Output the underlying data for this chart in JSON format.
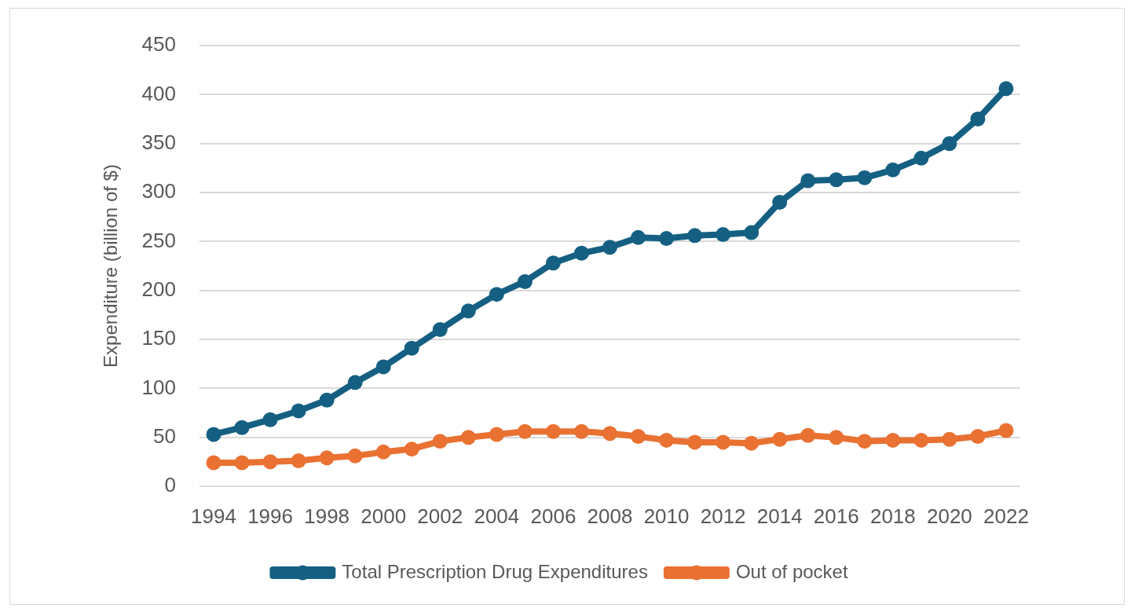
{
  "chart_data": {
    "type": "line",
    "ylabel": "Expenditure (billion of $)",
    "categories": [
      "1994",
      null,
      "1996",
      null,
      "1998",
      null,
      "2000",
      null,
      "2002",
      null,
      "2004",
      null,
      "2006",
      null,
      "2008",
      null,
      "2010",
      null,
      "2012",
      null,
      "2014",
      null,
      "2016",
      null,
      "2018",
      null,
      "2020",
      null,
      "2022"
    ],
    "series": [
      {
        "name": "Total Prescription Drug Expenditures",
        "color": "#156082",
        "values": [
          53,
          60,
          68,
          77,
          88,
          106,
          122,
          141,
          160,
          179,
          196,
          209,
          228,
          238,
          244,
          254,
          253,
          256,
          257,
          259,
          290,
          312,
          313,
          315,
          323,
          335,
          350,
          375,
          406
        ]
      },
      {
        "name": "Out of pocket",
        "color": "#e97132",
        "values": [
          24,
          24,
          25,
          26,
          29,
          31,
          35,
          38,
          46,
          50,
          53,
          56,
          56,
          56,
          54,
          51,
          47,
          45,
          45,
          44,
          48,
          52,
          50,
          46,
          47,
          47,
          48,
          51,
          57
        ]
      }
    ],
    "ylim": [
      0,
      450
    ],
    "yticks": [
      0,
      50,
      100,
      150,
      200,
      250,
      300,
      350,
      400,
      450
    ],
    "grid": "y",
    "legend": "bottom",
    "marker": "circle",
    "line_style": "solid"
  }
}
